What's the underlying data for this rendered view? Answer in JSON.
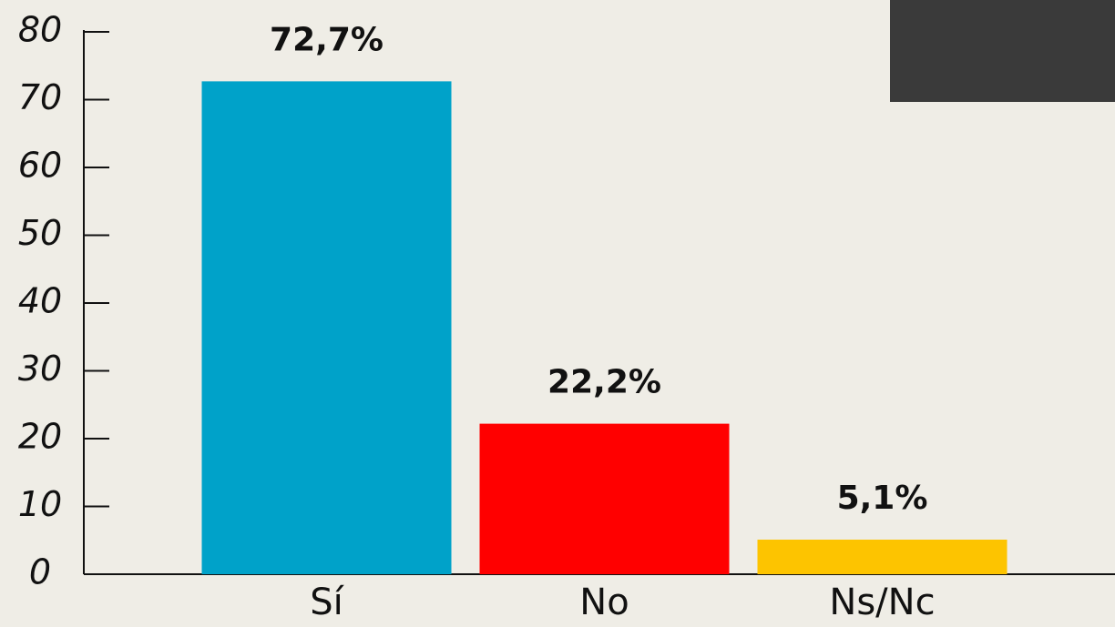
{
  "chart_data": {
    "type": "bar",
    "categories": [
      "Sí",
      "No",
      "Ns/Nc"
    ],
    "values": [
      72.7,
      22.2,
      5.1
    ],
    "value_labels": [
      "72,7%",
      "22,2%",
      "5,1%"
    ],
    "colors": [
      "#00a2c9",
      "#ff0000",
      "#fdc400"
    ],
    "ylim": [
      0,
      80
    ],
    "yticks": [
      0,
      10,
      20,
      30,
      40,
      50,
      60,
      70,
      80
    ],
    "grid": false
  }
}
